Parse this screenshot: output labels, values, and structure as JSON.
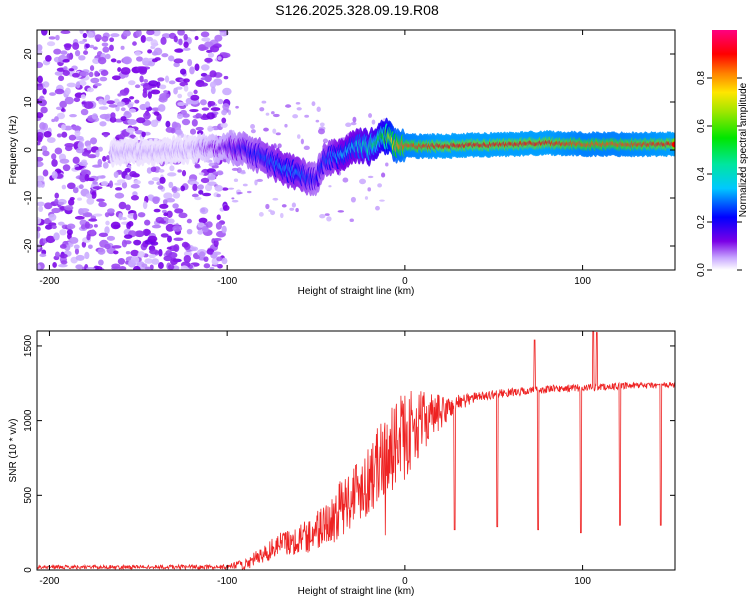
{
  "title": "S126.2025.328.09.19.R08",
  "colors": {
    "snr_line": "#ee2222",
    "spec_purple": "#7a00e6",
    "axis": "#000000",
    "background": "#ffffff"
  },
  "chart_data": [
    {
      "type": "heatmap",
      "name": "spectrogram",
      "xlabel": "Height of straight line (km)",
      "ylabel": "Frequency (Hz)",
      "xlim": [
        -207,
        152
      ],
      "ylim": [
        -25,
        25
      ],
      "xticks": [
        -200,
        -100,
        0,
        100
      ],
      "yticks": [
        -20,
        -10,
        0,
        10,
        20
      ],
      "xtick_labels": [
        "-200",
        "-100",
        "0",
        "100"
      ],
      "ytick_labels": [
        "-20",
        "-10",
        "0",
        "10",
        "20"
      ],
      "colorbar": {
        "label": "Normalized spectral amplitude",
        "range": [
          0,
          1
        ],
        "ticks": [
          0.0,
          0.2,
          0.4,
          0.6,
          0.8
        ],
        "tick_labels": [
          "0.0",
          "0.2",
          "0.4",
          "0.6",
          "0.8"
        ],
        "colormap": "purple-blue-cyan-green-yellow-red-magenta"
      },
      "ridge": {
        "description": "dominant frequency track vs height",
        "x": [
          -160,
          -140,
          -120,
          -100,
          -90,
          -80,
          -70,
          -60,
          -55,
          -50,
          -45,
          -40,
          -35,
          -30,
          -25,
          -20,
          -15,
          -10,
          -5,
          0,
          20,
          40,
          60,
          80,
          100,
          120,
          150
        ],
        "freq": [
          -0.5,
          -0.3,
          0.2,
          0.5,
          0.2,
          -1.5,
          -3.5,
          -5,
          -5.8,
          -6,
          -2,
          -1.5,
          -1.0,
          0.5,
          1.0,
          0.5,
          2.0,
          3.0,
          1.0,
          0.8,
          0.8,
          1.0,
          1.2,
          1.5,
          1.2,
          1.2,
          1.2
        ],
        "amplitude": [
          0.05,
          0.05,
          0.05,
          0.15,
          0.2,
          0.25,
          0.3,
          0.3,
          0.25,
          0.2,
          0.25,
          0.3,
          0.35,
          0.35,
          0.4,
          0.45,
          0.5,
          0.6,
          0.8,
          0.85,
          0.9,
          0.9,
          0.9,
          0.9,
          0.85,
          0.85,
          0.9
        ]
      },
      "noise_region": {
        "x_range": [
          -207,
          -100
        ],
        "freq_range": [
          -25,
          25
        ],
        "amplitude_max": 0.1
      }
    },
    {
      "type": "line",
      "name": "snr",
      "xlabel": "Height of straight line (km)",
      "ylabel": "SNR (10 * v/v)",
      "xlim": [
        -207,
        152
      ],
      "ylim": [
        0,
        1600
      ],
      "xticks": [
        -200,
        -100,
        0,
        100
      ],
      "yticks": [
        0,
        500,
        1000,
        1500
      ],
      "xtick_labels": [
        "-200",
        "-100",
        "0",
        "100"
      ],
      "ytick_labels": [
        "0",
        "500",
        "1000",
        "1500"
      ],
      "envelope": {
        "x": [
          -207,
          -100,
          -90,
          -80,
          -70,
          -60,
          -50,
          -40,
          -30,
          -20,
          -10,
          0,
          10,
          20,
          30,
          40,
          60,
          80,
          100,
          120,
          152
        ],
        "y": [
          20,
          20,
          40,
          100,
          180,
          200,
          260,
          350,
          500,
          620,
          780,
          900,
          1000,
          1050,
          1120,
          1160,
          1190,
          1210,
          1220,
          1230,
          1240
        ]
      },
      "noise_amplitude": {
        "x": [
          -207,
          -100,
          -80,
          -60,
          -40,
          -20,
          0,
          10,
          25,
          40,
          152
        ],
        "amp": [
          12,
          15,
          60,
          100,
          180,
          250,
          300,
          200,
          80,
          30,
          20
        ]
      },
      "dips": [
        {
          "x": 28,
          "y": 270
        },
        {
          "x": 52,
          "y": 290
        },
        {
          "x": 75,
          "y": 270
        },
        {
          "x": 99,
          "y": 250
        },
        {
          "x": 106,
          "y": 750
        },
        {
          "x": 121,
          "y": 300
        },
        {
          "x": 144,
          "y": 300
        }
      ],
      "spikes": [
        {
          "x": 73,
          "y": 1540
        },
        {
          "x": 106,
          "y": 1600
        },
        {
          "x": 108,
          "y": 1590
        }
      ]
    }
  ]
}
